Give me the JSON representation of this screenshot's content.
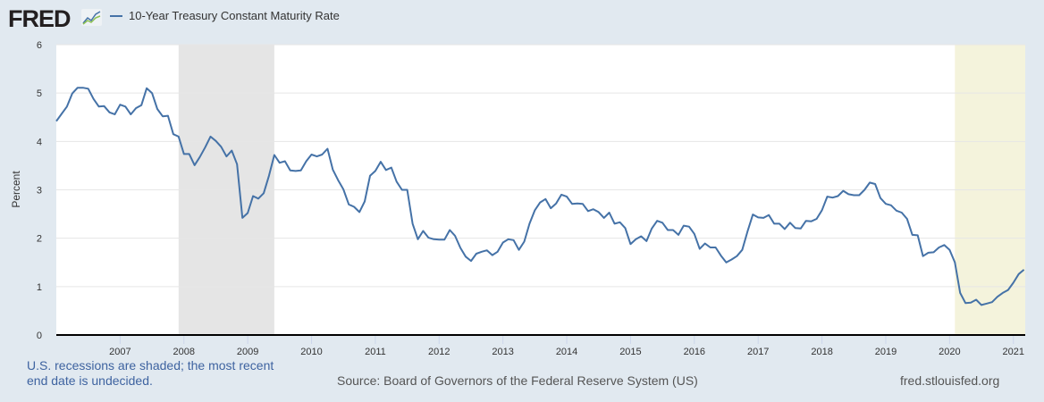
{
  "logo": {
    "text": "FRED"
  },
  "chart_data": {
    "type": "line",
    "title": "",
    "xlabel": "",
    "ylabel": "Percent",
    "ylim": [
      0,
      6
    ],
    "xlim": [
      "2006-01-01",
      "2021-03-08"
    ],
    "yticks": [
      "0",
      "1",
      "2",
      "3",
      "4",
      "5",
      "6"
    ],
    "xticks": [
      "2007",
      "2008",
      "2009",
      "2010",
      "2011",
      "2012",
      "2013",
      "2014",
      "2015",
      "2016",
      "2017",
      "2018",
      "2019",
      "2020",
      "2021"
    ],
    "grid": true,
    "legend_position": "top-left",
    "recessions": [
      {
        "start": "2007-12-01",
        "end": "2009-06-01",
        "color": "#e5e5e5"
      },
      {
        "start": "2020-02-01",
        "end": "2021-03-08",
        "color": "#f4f3dc"
      }
    ],
    "series": [
      {
        "name": "10-Year Treasury Constant Maturity Rate",
        "color": "#4572a7",
        "start": "2006-01",
        "values": [
          4.42,
          4.57,
          4.72,
          4.99,
          5.11,
          5.11,
          5.09,
          4.88,
          4.72,
          4.73,
          4.6,
          4.56,
          4.76,
          4.72,
          4.56,
          4.69,
          4.75,
          5.1,
          5.0,
          4.67,
          4.52,
          4.53,
          4.15,
          4.1,
          3.74,
          3.74,
          3.51,
          3.68,
          3.88,
          4.1,
          4.01,
          3.89,
          3.69,
          3.81,
          3.53,
          2.42,
          2.52,
          2.87,
          2.82,
          2.93,
          3.29,
          3.72,
          3.56,
          3.59,
          3.4,
          3.39,
          3.4,
          3.59,
          3.73,
          3.69,
          3.73,
          3.85,
          3.42,
          3.2,
          3.01,
          2.7,
          2.65,
          2.54,
          2.76,
          3.29,
          3.39,
          3.58,
          3.41,
          3.46,
          3.17,
          3.0,
          3.0,
          2.3,
          1.98,
          2.15,
          2.01,
          1.98,
          1.97,
          1.97,
          2.17,
          2.05,
          1.8,
          1.62,
          1.53,
          1.68,
          1.72,
          1.75,
          1.65,
          1.72,
          1.91,
          1.98,
          1.96,
          1.76,
          1.93,
          2.3,
          2.58,
          2.74,
          2.81,
          2.62,
          2.72,
          2.9,
          2.86,
          2.71,
          2.72,
          2.71,
          2.56,
          2.6,
          2.54,
          2.42,
          2.53,
          2.3,
          2.33,
          2.21,
          1.88,
          1.98,
          2.04,
          1.94,
          2.2,
          2.36,
          2.32,
          2.17,
          2.17,
          2.07,
          2.26,
          2.24,
          2.09,
          1.78,
          1.89,
          1.81,
          1.81,
          1.64,
          1.5,
          1.56,
          1.63,
          1.76,
          2.14,
          2.49,
          2.43,
          2.42,
          2.48,
          2.3,
          2.3,
          2.19,
          2.32,
          2.21,
          2.2,
          2.36,
          2.35,
          2.4,
          2.58,
          2.86,
          2.84,
          2.87,
          2.98,
          2.91,
          2.89,
          2.89,
          3.0,
          3.15,
          3.12,
          2.83,
          2.71,
          2.68,
          2.57,
          2.53,
          2.4,
          2.07,
          2.06,
          1.63,
          1.7,
          1.71,
          1.81,
          1.86,
          1.76,
          1.5,
          0.87,
          0.66,
          0.67,
          0.73,
          0.62,
          0.65,
          0.68,
          0.79,
          0.87,
          0.93,
          1.08,
          1.26,
          1.35
        ]
      }
    ]
  },
  "footer": {
    "recession_note_line1": "U.S. recessions are shaded; the most recent",
    "recession_note_line2": "end date is undecided.",
    "source": "Source: Board of Governors of the Federal Reserve System (US)",
    "url": "fred.stlouisfed.org"
  }
}
